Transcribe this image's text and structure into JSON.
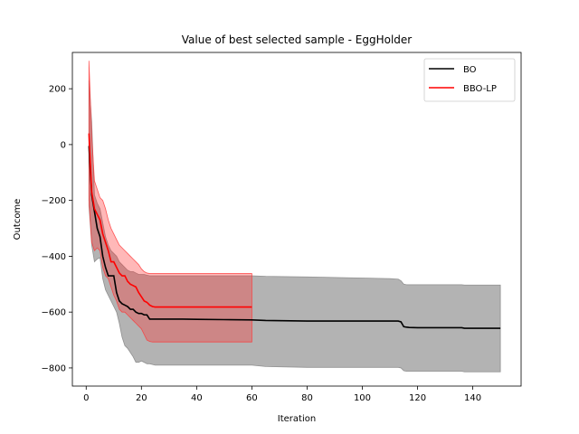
{
  "chart_data": {
    "type": "line",
    "title": "Value of best selected sample - EggHolder",
    "xlabel": "Iteration",
    "ylabel": "Outcome",
    "xlim": [
      -5,
      157.5
    ],
    "ylim": [
      -865,
      330
    ],
    "xticks": [
      0,
      20,
      40,
      60,
      80,
      100,
      120,
      140
    ],
    "yticks": [
      -800,
      -600,
      -400,
      -200,
      0,
      200
    ],
    "grid": false,
    "legend_position": "top-right",
    "series": [
      {
        "name": "BO",
        "color": "#000000",
        "band_color": "#808080",
        "band_opacity": 0.6,
        "x": [
          1,
          2,
          3,
          4,
          5,
          6,
          7,
          8,
          9,
          10,
          11,
          12,
          13,
          14,
          15,
          16,
          17,
          18,
          19,
          20,
          21,
          22,
          23,
          25,
          30,
          35,
          40,
          50,
          60,
          65,
          80,
          90,
          100,
          110,
          113,
          114,
          115,
          116,
          117,
          120,
          125,
          130,
          136,
          137,
          140,
          145,
          150
        ],
        "mean": [
          -5,
          -180,
          -240,
          -300,
          -330,
          -400,
          -440,
          -470,
          -470,
          -470,
          -530,
          -560,
          -570,
          -575,
          -580,
          -590,
          -590,
          -600,
          -605,
          -605,
          -610,
          -610,
          -625,
          -625,
          -625,
          -625,
          -626,
          -627,
          -628,
          -630,
          -632,
          -632,
          -632,
          -632,
          -632,
          -635,
          -652,
          -654,
          -655,
          -656,
          -656,
          -656,
          -656,
          -658,
          -658,
          -658,
          -658
        ],
        "upper": [
          230,
          80,
          -180,
          -210,
          -230,
          -280,
          -330,
          -360,
          -380,
          -390,
          -400,
          -420,
          -430,
          -440,
          -450,
          -455,
          -455,
          -460,
          -465,
          -465,
          -465,
          -468,
          -470,
          -470,
          -470,
          -470,
          -470,
          -470,
          -470,
          -472,
          -474,
          -476,
          -478,
          -480,
          -482,
          -488,
          -500,
          -502,
          -502,
          -502,
          -502,
          -502,
          -502,
          -503,
          -503,
          -503,
          -503
        ],
        "lower": [
          -220,
          -360,
          -420,
          -410,
          -405,
          -480,
          -520,
          -540,
          -560,
          -580,
          -600,
          -640,
          -690,
          -720,
          -730,
          -745,
          -760,
          -780,
          -780,
          -775,
          -780,
          -785,
          -785,
          -790,
          -790,
          -790,
          -790,
          -790,
          -790,
          -795,
          -798,
          -798,
          -798,
          -798,
          -798,
          -800,
          -810,
          -812,
          -812,
          -812,
          -812,
          -812,
          -812,
          -814,
          -814,
          -814,
          -814
        ]
      },
      {
        "name": "BBO-LP",
        "color": "#ff0000",
        "band_color": "#ff3333",
        "band_opacity": 0.35,
        "x": [
          1,
          2,
          3,
          4,
          5,
          6,
          7,
          8,
          9,
          10,
          11,
          12,
          13,
          14,
          15,
          16,
          17,
          18,
          19,
          20,
          21,
          22,
          23,
          24,
          25,
          30,
          40,
          50,
          60
        ],
        "mean": [
          40,
          -170,
          -230,
          -250,
          -270,
          -320,
          -350,
          -380,
          -420,
          -420,
          -440,
          -460,
          -470,
          -470,
          -490,
          -500,
          -505,
          -510,
          -530,
          -545,
          -560,
          -565,
          -575,
          -580,
          -582,
          -582,
          -582,
          -582,
          -582
        ],
        "upper": [
          300,
          30,
          -130,
          -160,
          -190,
          -200,
          -230,
          -270,
          -300,
          -320,
          -340,
          -360,
          -370,
          -380,
          -390,
          -400,
          -410,
          -420,
          -430,
          -445,
          -455,
          -460,
          -462,
          -462,
          -462,
          -462,
          -462,
          -462,
          -462
        ],
        "lower": [
          -200,
          -350,
          -380,
          -370,
          -380,
          -440,
          -470,
          -480,
          -510,
          -540,
          -560,
          -590,
          -600,
          -600,
          -610,
          -620,
          -630,
          -640,
          -650,
          -660,
          -680,
          -700,
          -705,
          -707,
          -707,
          -707,
          -707,
          -707,
          -707
        ]
      }
    ]
  }
}
